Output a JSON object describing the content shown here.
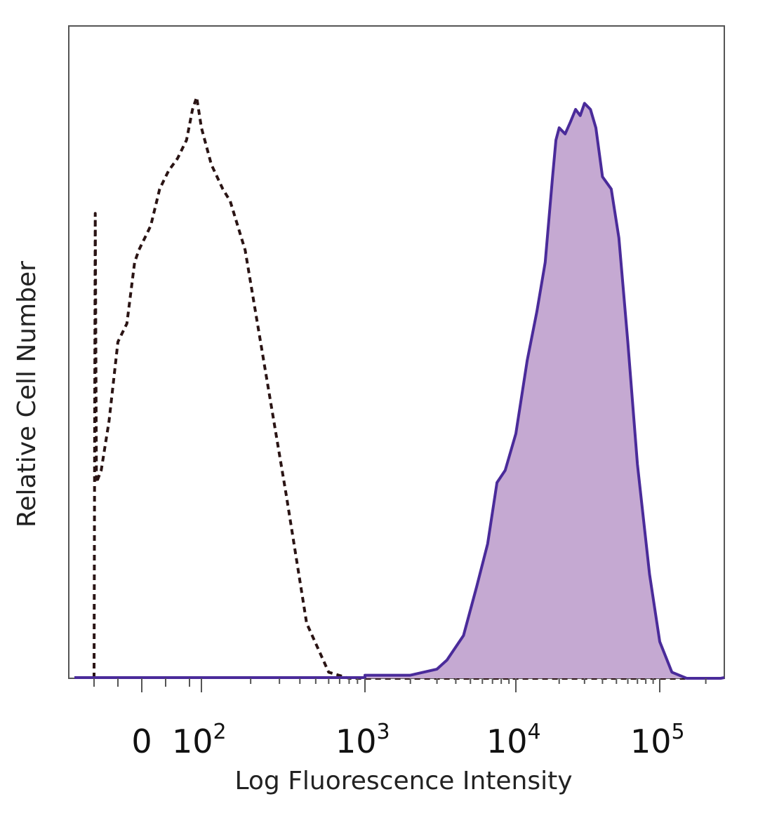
{
  "chart_data": {
    "type": "area",
    "xlabel": "Log Fluorescence Intensity",
    "ylabel": "Relative Cell Number",
    "x_scale": "biexponential",
    "x_ticks": [
      {
        "value": 0,
        "label": "0"
      },
      {
        "value": 100,
        "base": "10",
        "exp": "2"
      },
      {
        "value": 1000,
        "base": "10",
        "exp": "3"
      },
      {
        "value": 10000,
        "base": "10",
        "exp": "4"
      },
      {
        "value": 100000,
        "base": "10",
        "exp": "5"
      }
    ],
    "ylim": [
      0,
      1
    ],
    "grid": false,
    "series": [
      {
        "style": "dashed-outline",
        "color": "#2a1414",
        "points": [
          [
            -80,
            0.0
          ],
          [
            -78,
            0.76
          ],
          [
            -76,
            0.32
          ],
          [
            -68,
            0.34
          ],
          [
            -55,
            0.42
          ],
          [
            -40,
            0.55
          ],
          [
            -25,
            0.58
          ],
          [
            -12,
            0.68
          ],
          [
            -5,
            0.7
          ],
          [
            5,
            0.72
          ],
          [
            15,
            0.74
          ],
          [
            30,
            0.8
          ],
          [
            45,
            0.83
          ],
          [
            60,
            0.85
          ],
          [
            75,
            0.88
          ],
          [
            85,
            0.93
          ],
          [
            92,
            0.95
          ],
          [
            100,
            0.9
          ],
          [
            115,
            0.84
          ],
          [
            135,
            0.8
          ],
          [
            150,
            0.78
          ],
          [
            185,
            0.7
          ],
          [
            240,
            0.52
          ],
          [
            330,
            0.3
          ],
          [
            440,
            0.09
          ],
          [
            600,
            0.01
          ],
          [
            800,
            0.0
          ],
          [
            3000,
            0.0
          ],
          [
            10000,
            0.0
          ],
          [
            250000,
            0.0
          ]
        ]
      },
      {
        "style": "filled",
        "color": "#4a2b9a",
        "fill": "#c5a9d2",
        "points": [
          [
            1000,
            0.005
          ],
          [
            2000,
            0.005
          ],
          [
            3000,
            0.015
          ],
          [
            3500,
            0.03
          ],
          [
            4500,
            0.07
          ],
          [
            5500,
            0.15
          ],
          [
            6500,
            0.22
          ],
          [
            7500,
            0.32
          ],
          [
            8500,
            0.34
          ],
          [
            10000,
            0.4
          ],
          [
            12000,
            0.52
          ],
          [
            14000,
            0.6
          ],
          [
            16000,
            0.68
          ],
          [
            18000,
            0.82
          ],
          [
            19000,
            0.88
          ],
          [
            20000,
            0.9
          ],
          [
            22000,
            0.89
          ],
          [
            24000,
            0.91
          ],
          [
            26000,
            0.93
          ],
          [
            28000,
            0.92
          ],
          [
            30000,
            0.94
          ],
          [
            33000,
            0.93
          ],
          [
            36000,
            0.9
          ],
          [
            40000,
            0.82
          ],
          [
            46000,
            0.8
          ],
          [
            52000,
            0.72
          ],
          [
            60000,
            0.55
          ],
          [
            70000,
            0.35
          ],
          [
            85000,
            0.17
          ],
          [
            100000,
            0.06
          ],
          [
            120000,
            0.01
          ],
          [
            150000,
            0.0
          ],
          [
            250000,
            0.0
          ]
        ]
      }
    ]
  }
}
